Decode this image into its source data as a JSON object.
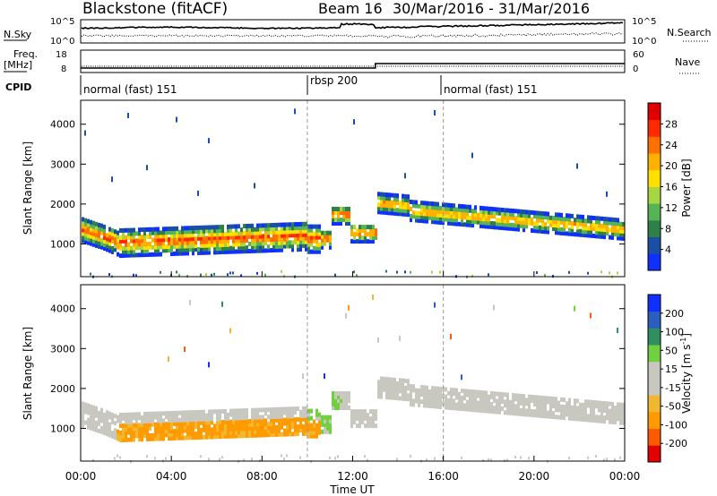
{
  "header": {
    "station": "Blackstone (fitACF)",
    "beam": "Beam 16",
    "dates": "30/Mar/2016 - 31/Mar/2016"
  },
  "chart_data": [
    {
      "type": "line",
      "panel": "sky-search-counts",
      "left_label": "N.Sky",
      "right_label": "N.Search",
      "left_ticks": [
        "10^5",
        "10^0"
      ],
      "right_ticks": [
        "10^5",
        "10^0"
      ],
      "series": [
        {
          "name": "N.Sky",
          "style": "solid"
        },
        {
          "name": "N.Search",
          "style": "dotted"
        }
      ]
    },
    {
      "type": "line",
      "panel": "freq-nave",
      "left_label_1": "Freq.",
      "left_label_2": "[MHz]",
      "right_label": "Nave",
      "left_ticks": [
        "18",
        "8"
      ],
      "right_ticks": [
        "60",
        "0"
      ],
      "series": [
        {
          "name": "Freq.",
          "style": "solid",
          "x": [
            0,
            13,
            13,
            24
          ],
          "values": [
            10,
            10,
            12,
            12
          ]
        },
        {
          "name": "Nave",
          "style": "dotted"
        }
      ]
    },
    {
      "type": "table",
      "panel": "cpid",
      "label": "CPID",
      "segments": [
        {
          "start": 0,
          "end": 10,
          "name": "normal (fast) 151"
        },
        {
          "start": 10,
          "end": 16,
          "name": "rbsp 200"
        },
        {
          "start": 16,
          "end": 24,
          "name": "normal (fast) 151"
        }
      ]
    },
    {
      "type": "heatmap",
      "panel": "power",
      "ylabel": "Slant Range [km]",
      "ylim": [
        180,
        4600
      ],
      "yticks": [
        "4000",
        "3000",
        "2000",
        "1000"
      ],
      "colorbar_label": "Power [dB]",
      "colorbar_ticks": [
        "28",
        "24",
        "20",
        "16",
        "12",
        "8",
        "4"
      ],
      "colors": [
        "#1030ff",
        "#1a4fa8",
        "#2f7f4a",
        "#55b555",
        "#a6d640",
        "#ffe000",
        "#ffb000",
        "#ff7000",
        "#ff2a00",
        "#e00000"
      ]
    },
    {
      "type": "heatmap",
      "panel": "velocity",
      "ylabel": "Slant Range [km]",
      "ylim": [
        180,
        4600
      ],
      "yticks": [
        "4000",
        "3000",
        "2000",
        "1000"
      ],
      "colorbar_label": "Velocity [m s",
      "colorbar_label_sup": "-1",
      "colorbar_label_end": "]",
      "colorbar_ticks": [
        "200",
        "100",
        "50",
        "15",
        "-15",
        "-50",
        "-100",
        "-200"
      ],
      "colors": [
        "#e00000",
        "#ff5a00",
        "#ff9a00",
        "#f0b830",
        "#c8c8c0",
        "#c8c8c0",
        "#70d040",
        "#2f8f5f",
        "#2a5fc0",
        "#1030ff"
      ]
    }
  ],
  "time_axis": {
    "label": "Time UT",
    "xlim": [
      0,
      24
    ],
    "ticks": [
      "00:00",
      "04:00",
      "08:00",
      "12:00",
      "16:00",
      "20:00",
      "00:00"
    ]
  }
}
